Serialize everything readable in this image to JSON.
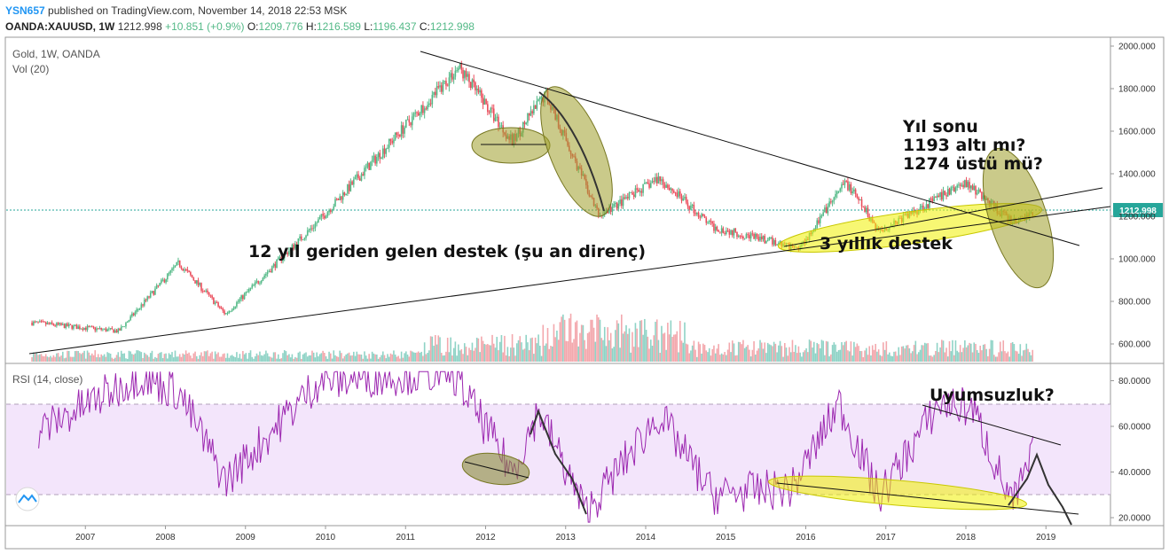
{
  "header": {
    "author": "YSN657",
    "published": "published on TradingView.com, November 14, 2018 22:53 MSK",
    "symbol": "OANDA:XAUUSD, 1W",
    "last": "1212.998",
    "change": "+10.851 (+0.9%)",
    "o_label": "O:",
    "o": "1209.776",
    "h_label": "H:",
    "h": "1216.589",
    "l_label": "L:",
    "l": "1196.437",
    "c_label": "C:",
    "c": "1212.998"
  },
  "main_legend": {
    "title": "Gold, 1W, OANDA",
    "volume": "Vol (20)"
  },
  "rsi_legend": "RSI (14, close)",
  "price_axis": [
    "2000.000",
    "1800.000",
    "1600.000",
    "1400.000",
    "1200.000",
    "1000.000",
    "800.000",
    "600.000"
  ],
  "price_tag": "1212.998",
  "rsi_axis": [
    "80.0000",
    "60.0000",
    "40.0000",
    "20.0000"
  ],
  "time_axis": [
    "2007",
    "2008",
    "2009",
    "2010",
    "2011",
    "2012",
    "2013",
    "2014",
    "2015",
    "2016",
    "2017",
    "2018",
    "2019"
  ],
  "annotations": {
    "support_text": "12 yıl geriden gelen destek (şu an direnç)",
    "support3_text": "3 yıllık destek",
    "year_end_1": "Yıl sonu",
    "year_end_2": "1193 altı mı?",
    "year_end_3": "1274 üstü mü?",
    "divergence": "Uyumsuzluk?"
  },
  "colors": {
    "up": "#53b987",
    "down": "#eb4d5c",
    "rsi": "#9c27b0",
    "rsi_band": "#f3e5fb",
    "highlight_olive": "#9e9e2a",
    "highlight_yellow": "#f0f000"
  },
  "chart_data": [
    {
      "type": "candlestick",
      "title": "Gold, 1W, OANDA",
      "x": [
        "2006-05",
        "2007-06",
        "2008-03",
        "2008-10",
        "2009-12",
        "2011-09",
        "2012-05",
        "2012-10",
        "2013-06",
        "2014-03",
        "2014-11",
        "2015-12",
        "2016-07",
        "2016-12",
        "2018-01",
        "2018-08",
        "2018-11"
      ],
      "close_approx": [
        700,
        660,
        980,
        740,
        1180,
        1900,
        1550,
        1780,
        1200,
        1380,
        1150,
        1050,
        1360,
        1130,
        1360,
        1170,
        1213
      ],
      "ylim": [
        500,
        2050
      ],
      "last": 1212.998
    },
    {
      "type": "line",
      "title": "RSI (14, close)",
      "x": [
        "2006-06",
        "2007-09",
        "2008-03",
        "2008-10",
        "2009-12",
        "2011-08",
        "2012-05",
        "2012-09",
        "2013-04",
        "2014-03",
        "2014-11",
        "2015-11",
        "2016-06",
        "2016-12",
        "2017-09",
        "2018-02",
        "2018-08",
        "2018-11"
      ],
      "values": [
        58,
        82,
        75,
        36,
        80,
        84,
        40,
        67,
        22,
        65,
        30,
        33,
        70,
        29,
        70,
        68,
        25,
        47
      ],
      "ylim": [
        18,
        84
      ],
      "bands": [
        30,
        70
      ]
    }
  ]
}
